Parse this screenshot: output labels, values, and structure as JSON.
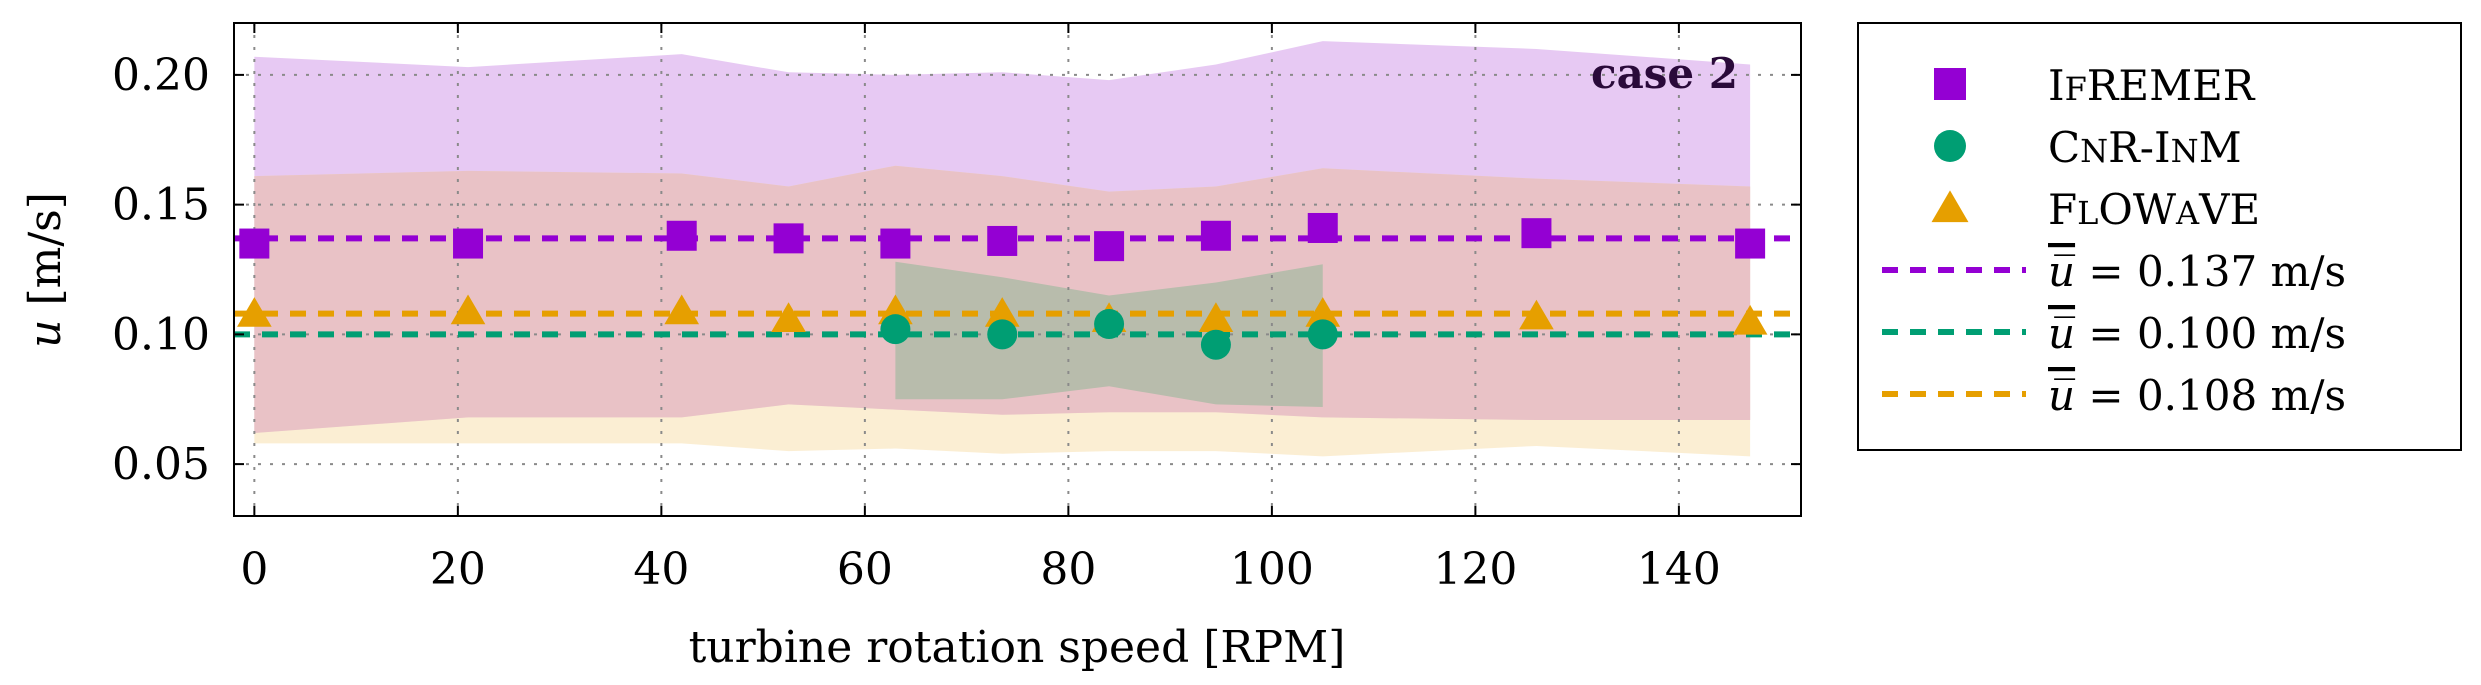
{
  "chart_data": {
    "type": "scatter",
    "xlabel": "turbine rotation speed [RPM]",
    "ylabel": "u [m/s]",
    "xlim": [
      -2,
      152
    ],
    "ylim": [
      0.03,
      0.22
    ],
    "xticks": [
      0,
      20,
      40,
      60,
      80,
      100,
      120,
      140
    ],
    "yticks": [
      0.05,
      0.1,
      0.15,
      0.2
    ],
    "xtick_labels": [
      "0",
      "20",
      "40",
      "60",
      "80",
      "100",
      "120",
      "140"
    ],
    "ytick_labels": [
      "0.05",
      "0.10",
      "0.15",
      "0.20"
    ],
    "grid": true,
    "annotation": "case 2",
    "legend_position": "outside-right",
    "series": [
      {
        "name": "Ifremer",
        "marker": "square",
        "color": "#9400d3",
        "band_color": "#e6c6f2",
        "x": [
          0,
          21,
          42,
          52.5,
          63,
          73.5,
          84,
          94.5,
          105,
          126,
          147
        ],
        "y": [
          0.135,
          0.135,
          0.138,
          0.137,
          0.135,
          0.136,
          0.134,
          0.138,
          0.141,
          0.139,
          0.135
        ],
        "band_upper": [
          0.207,
          0.203,
          0.208,
          0.201,
          0.2,
          0.201,
          0.198,
          0.204,
          0.213,
          0.21,
          0.204
        ],
        "band_lower": [
          0.062,
          0.068,
          0.068,
          0.073,
          0.071,
          0.069,
          0.07,
          0.07,
          0.068,
          0.067,
          0.067
        ],
        "mean": 0.137,
        "mean_label": "u̅ = 0.137 m/s"
      },
      {
        "name": "Cnr-Inm",
        "marker": "circle",
        "color": "#009e73",
        "band_color": "#b8bcac",
        "x": [
          63,
          73.5,
          84,
          94.5,
          105
        ],
        "y": [
          0.102,
          0.1,
          0.104,
          0.096,
          0.1
        ],
        "band_upper": [
          0.128,
          0.122,
          0.115,
          0.12,
          0.127
        ],
        "band_lower": [
          0.075,
          0.075,
          0.08,
          0.073,
          0.072
        ],
        "mean": 0.1,
        "mean_label": "u̅ = 0.100 m/s"
      },
      {
        "name": "FloWave",
        "marker": "triangle",
        "color": "#e69f00",
        "band_color": "#f9e8c4",
        "x": [
          0,
          21,
          42,
          52.5,
          63,
          73.5,
          84,
          94.5,
          105,
          126,
          147
        ],
        "y": [
          0.108,
          0.109,
          0.109,
          0.106,
          0.109,
          0.108,
          0.106,
          0.106,
          0.108,
          0.107,
          0.105
        ],
        "band_upper": [
          0.161,
          0.163,
          0.162,
          0.157,
          0.165,
          0.161,
          0.155,
          0.157,
          0.164,
          0.16,
          0.157
        ],
        "band_lower": [
          0.058,
          0.058,
          0.058,
          0.055,
          0.056,
          0.054,
          0.055,
          0.055,
          0.053,
          0.057,
          0.053
        ],
        "mean": 0.108,
        "mean_label": "u̅ = 0.108 m/s"
      }
    ],
    "legend": [
      {
        "type": "marker",
        "series": 0,
        "label": "Ifremer"
      },
      {
        "type": "marker",
        "series": 1,
        "label": "Cnr-Inm"
      },
      {
        "type": "marker",
        "series": 2,
        "label": "FloWave"
      },
      {
        "type": "line",
        "series": 0,
        "label": "u̅ = 0.137 m/s"
      },
      {
        "type": "line",
        "series": 1,
        "label": "u̅ = 0.100 m/s"
      },
      {
        "type": "line",
        "series": 2,
        "label": "u̅ = 0.108 m/s"
      }
    ]
  }
}
